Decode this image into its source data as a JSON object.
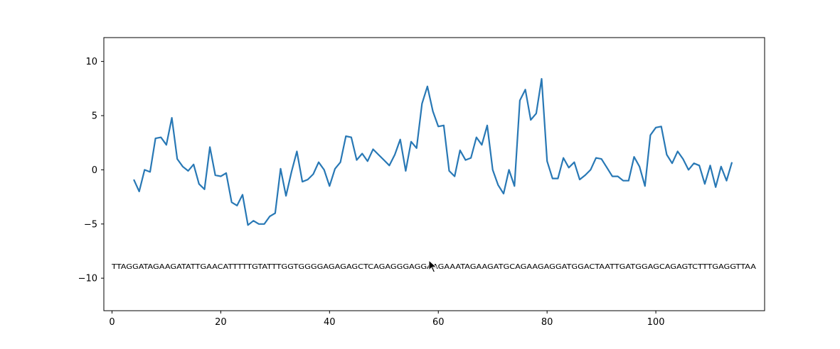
{
  "chart_data": {
    "type": "line",
    "title": "",
    "xlabel": "",
    "ylabel": "",
    "xlim": [
      -1.5,
      120
    ],
    "ylim": [
      -13,
      12.2
    ],
    "x_ticks": [
      0,
      20,
      40,
      60,
      80,
      100
    ],
    "y_ticks": [
      10,
      5,
      0,
      -5,
      -10
    ],
    "grid": false,
    "series": [
      {
        "color": "#2878b5",
        "x": [
          4,
          5,
          6,
          7,
          8,
          9,
          10,
          11,
          12,
          13,
          14,
          15,
          16,
          17,
          18,
          19,
          20,
          21,
          22,
          23,
          24,
          25,
          26,
          27,
          28,
          29,
          30,
          31,
          32,
          33,
          34,
          35,
          36,
          37,
          38,
          39,
          40,
          41,
          42,
          43,
          44,
          45,
          46,
          47,
          48,
          49,
          50,
          51,
          52,
          53,
          54,
          55,
          56,
          57,
          58,
          59,
          60,
          61,
          62,
          63,
          64,
          65,
          66,
          67,
          68,
          69,
          70,
          71,
          72,
          73,
          74,
          75,
          76,
          77,
          78,
          79,
          80,
          81,
          82,
          83,
          84,
          85,
          86,
          87,
          88,
          89,
          90,
          91,
          92,
          93,
          94,
          95,
          96,
          97,
          98,
          99,
          100,
          101,
          102,
          103,
          104,
          105,
          106,
          107,
          108,
          109,
          110,
          111,
          112,
          113,
          114
        ],
        "y": [
          -0.9,
          -2.0,
          0.0,
          -0.2,
          2.9,
          3.0,
          2.3,
          4.8,
          1.0,
          0.3,
          -0.1,
          0.5,
          -1.3,
          -1.8,
          2.1,
          -0.5,
          -0.6,
          -0.3,
          -3.0,
          -3.3,
          -2.3,
          -5.1,
          -4.7,
          -5.0,
          -5.0,
          -4.3,
          -4.0,
          0.1,
          -2.4,
          -0.2,
          1.7,
          -1.1,
          -0.9,
          -0.4,
          0.7,
          0.0,
          -1.5,
          0.1,
          0.7,
          3.1,
          3.0,
          0.9,
          1.5,
          0.8,
          1.9,
          1.4,
          0.9,
          0.4,
          1.4,
          2.8,
          -0.1,
          2.6,
          2.0,
          6.1,
          7.7,
          5.4,
          4.0,
          4.1,
          -0.1,
          -0.6,
          1.8,
          0.9,
          1.1,
          3.0,
          2.3,
          4.1,
          0.0,
          -1.4,
          -2.2,
          0.0,
          -1.5,
          6.4,
          7.4,
          4.6,
          5.2,
          8.4,
          0.8,
          -0.8,
          -0.8,
          1.1,
          0.2,
          0.7,
          -0.9,
          -0.5,
          0.0,
          1.1,
          1.0,
          0.2,
          -0.6,
          -0.6,
          -1.0,
          -1.0,
          1.2,
          0.3,
          -1.5,
          3.2,
          3.9,
          4.0,
          1.4,
          0.6,
          1.7,
          1.0,
          0.0,
          0.6,
          0.4,
          -1.3,
          0.4,
          -1.6,
          0.3,
          -1.0,
          0.7
        ]
      }
    ],
    "annotation": {
      "text": "TTAGGATAGAAGATATTGAACATTTTTGTATTTGGTGGGGAGAGAGCTCAGAGGGAGGAAGAAATAGAAGATGCAGAAGAGGATGGACTAATTGATGGAGCAGAGTCTTTGAGGTTAA",
      "y": -8.9
    }
  },
  "cursor": {
    "icon": "mouse-pointer-icon"
  }
}
